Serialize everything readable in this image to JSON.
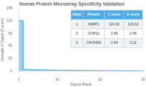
{
  "chart_data": {
    "type": "area",
    "title": "Human Protein Microarray Specificity Validation",
    "x_label": "Signal Rank",
    "y_label": "Strength of Signal (Z score)",
    "line_style": "steps-pre",
    "x": [
      1,
      2,
      3,
      4,
      5,
      6,
      7,
      8,
      9,
      10,
      11,
      12,
      13,
      14,
      15,
      16,
      17,
      18,
      19,
      20,
      21,
      22,
      23,
      24,
      25,
      26,
      27,
      28,
      29,
      30
    ],
    "values": [
      124.61,
      3.99,
      3.54,
      3.2,
      2.9,
      2.7,
      2.5,
      2.3,
      2.1,
      1.9,
      1.8,
      1.7,
      1.6,
      1.5,
      1.4,
      1.3,
      1.2,
      1.1,
      1.0,
      0.9,
      0.85,
      0.8,
      0.75,
      0.7,
      0.65,
      0.6,
      0.55,
      0.5,
      0.45,
      0.4
    ],
    "xlim": [
      1,
      30
    ],
    "xticks": [
      1,
      10,
      20,
      30
    ],
    "ylim": [
      0,
      155
    ],
    "yticks": [
      0,
      31,
      62,
      93,
      124,
      155
    ],
    "grid": false,
    "table": {
      "headers": [
        "Rank",
        "Protein",
        "Z score",
        "S score"
      ],
      "rows": [
        [
          "1",
          "MMP3",
          "124.61",
          "120.62"
        ],
        [
          "2",
          "COP21",
          "3.99",
          "0.45"
        ],
        [
          "3",
          "CHCHD6",
          "3.54",
          "0.31"
        ]
      ]
    }
  }
}
